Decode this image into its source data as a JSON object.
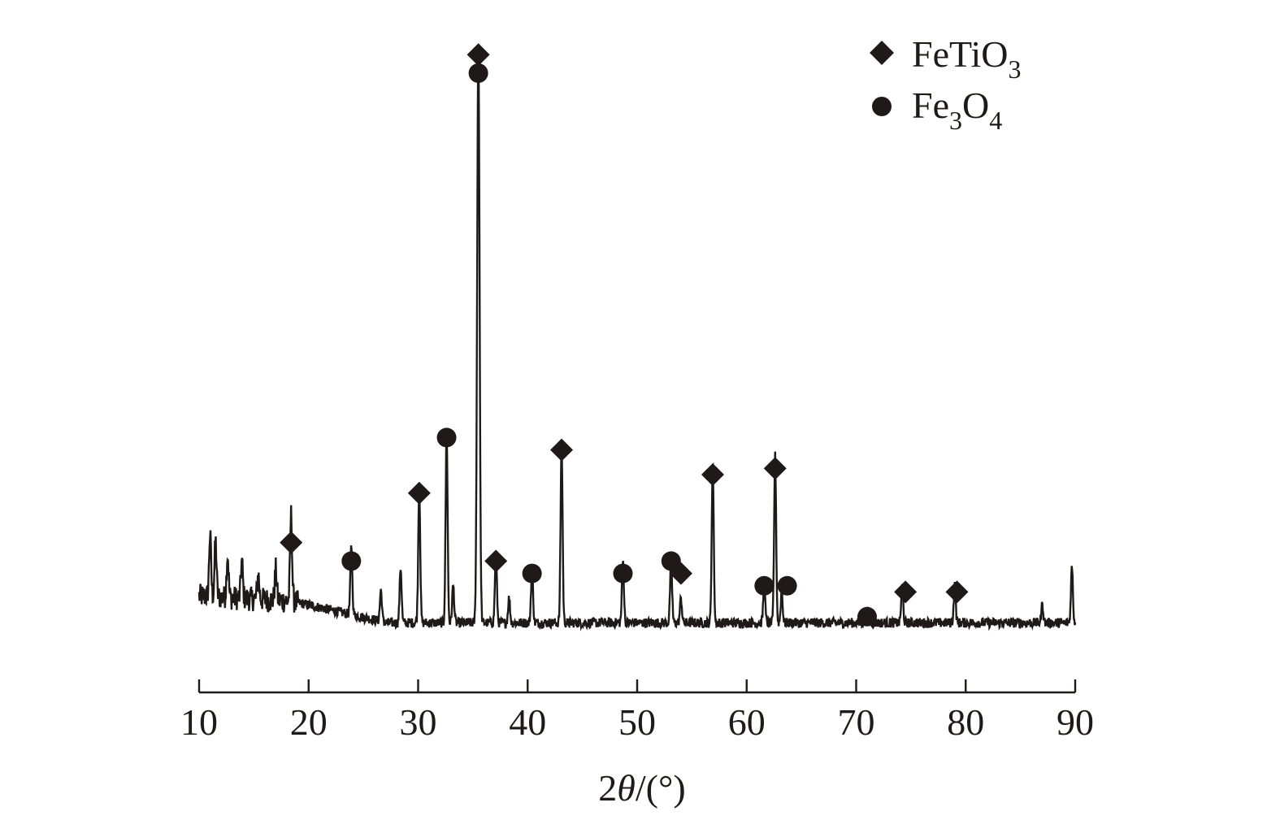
{
  "chart_data": {
    "type": "line",
    "xlabel": "2θ/(°)",
    "xlabel_parts": {
      "prefix": "2",
      "symbol": "θ",
      "suffix": "/(°)"
    },
    "xlim": [
      10,
      90
    ],
    "x_ticks": [
      10,
      20,
      30,
      40,
      50,
      60,
      70,
      80,
      90
    ],
    "y_axis_visible": false,
    "grid": false,
    "legend_position": "top-right",
    "colors": {
      "line": "#1f1a17",
      "marker": "#1f1a17"
    },
    "legend": [
      {
        "name": "FeTiO3",
        "base": "FeTiO",
        "sub": "3",
        "marker": "diamond"
      },
      {
        "name": "Fe3O4",
        "parts": [
          "Fe",
          "3",
          "O",
          "4"
        ],
        "marker": "circle"
      }
    ],
    "baseline": 0.06,
    "peaks": [
      {
        "x": 11.0,
        "y": 0.1
      },
      {
        "x": 11.5,
        "y": 0.09
      },
      {
        "x": 12.6,
        "y": 0.07
      },
      {
        "x": 13.9,
        "y": 0.06
      },
      {
        "x": 15.4,
        "y": 0.04
      },
      {
        "x": 17.0,
        "y": 0.05
      },
      {
        "x": 18.4,
        "y": 0.14
      },
      {
        "x": 23.9,
        "y": 0.11
      },
      {
        "x": 26.6,
        "y": 0.05
      },
      {
        "x": 28.4,
        "y": 0.09
      },
      {
        "x": 30.1,
        "y": 0.22
      },
      {
        "x": 32.6,
        "y": 0.31
      },
      {
        "x": 33.2,
        "y": 0.06
      },
      {
        "x": 35.5,
        "y": 0.94
      },
      {
        "x": 37.1,
        "y": 0.11
      },
      {
        "x": 38.3,
        "y": 0.04
      },
      {
        "x": 40.4,
        "y": 0.09
      },
      {
        "x": 43.1,
        "y": 0.29
      },
      {
        "x": 48.7,
        "y": 0.1
      },
      {
        "x": 53.1,
        "y": 0.1
      },
      {
        "x": 54.0,
        "y": 0.04
      },
      {
        "x": 56.9,
        "y": 0.26
      },
      {
        "x": 61.6,
        "y": 0.06
      },
      {
        "x": 62.6,
        "y": 0.27
      },
      {
        "x": 63.2,
        "y": 0.05
      },
      {
        "x": 71.0,
        "y": 0.02
      },
      {
        "x": 74.2,
        "y": 0.06
      },
      {
        "x": 79.0,
        "y": 0.06
      },
      {
        "x": 87.0,
        "y": 0.03
      },
      {
        "x": 89.7,
        "y": 0.09
      }
    ],
    "phase_markers": [
      {
        "phase": "FeTiO3",
        "shape": "diamond",
        "x": 18.4,
        "y": 0.19
      },
      {
        "phase": "Fe3O4",
        "shape": "circle",
        "x": 23.9,
        "y": 0.16
      },
      {
        "phase": "FeTiO3",
        "shape": "diamond",
        "x": 30.1,
        "y": 0.27
      },
      {
        "phase": "Fe3O4",
        "shape": "circle",
        "x": 32.6,
        "y": 0.36
      },
      {
        "phase": "FeTiO3",
        "shape": "diamond",
        "x": 35.5,
        "y": 0.98
      },
      {
        "phase": "Fe3O4",
        "shape": "circle",
        "x": 35.5,
        "y": 0.95
      },
      {
        "phase": "FeTiO3",
        "shape": "diamond",
        "x": 37.1,
        "y": 0.16
      },
      {
        "phase": "Fe3O4",
        "shape": "circle",
        "x": 40.4,
        "y": 0.14
      },
      {
        "phase": "FeTiO3",
        "shape": "diamond",
        "x": 43.1,
        "y": 0.34
      },
      {
        "phase": "Fe3O4",
        "shape": "circle",
        "x": 48.7,
        "y": 0.14
      },
      {
        "phase": "Fe3O4",
        "shape": "circle",
        "x": 53.1,
        "y": 0.16
      },
      {
        "phase": "FeTiO3",
        "shape": "diamond",
        "x": 54.0,
        "y": 0.14
      },
      {
        "phase": "FeTiO3",
        "shape": "diamond",
        "x": 56.9,
        "y": 0.3
      },
      {
        "phase": "Fe3O4",
        "shape": "circle",
        "x": 61.6,
        "y": 0.12
      },
      {
        "phase": "FeTiO3",
        "shape": "diamond",
        "x": 62.6,
        "y": 0.31
      },
      {
        "phase": "Fe3O4",
        "shape": "circle",
        "x": 63.7,
        "y": 0.12
      },
      {
        "phase": "Fe3O4",
        "shape": "circle",
        "x": 71.0,
        "y": 0.07
      },
      {
        "phase": "FeTiO3",
        "shape": "diamond",
        "x": 74.5,
        "y": 0.11
      },
      {
        "phase": "FeTiO3",
        "shape": "diamond",
        "x": 79.2,
        "y": 0.11
      }
    ]
  }
}
